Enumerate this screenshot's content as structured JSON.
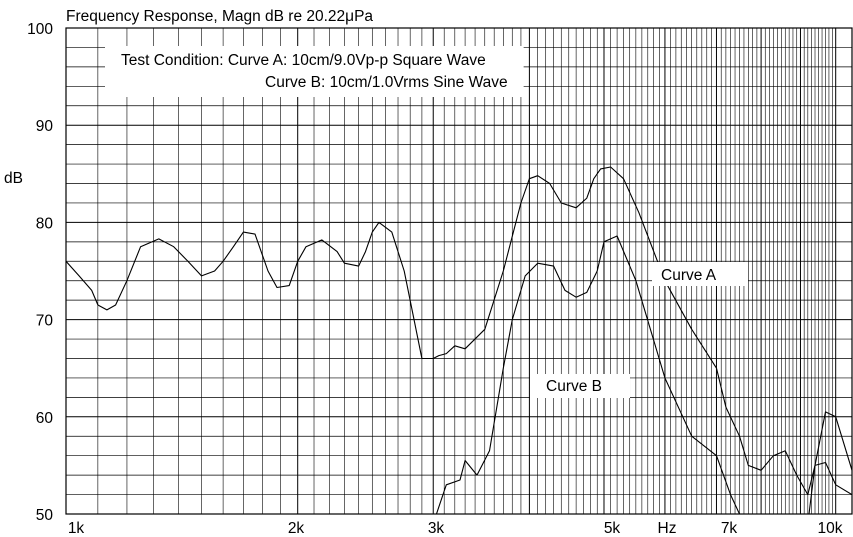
{
  "chart_data": {
    "type": "line",
    "title": "Frequency Response, Magn dB re 20.22μPa",
    "xlabel": "Hz",
    "ylabel": "dB",
    "x_scale": "log",
    "xlim": [
      1000,
      10500
    ],
    "ylim": [
      50,
      100
    ],
    "grid": true,
    "x_ticks": [
      {
        "value": 1000,
        "label": "1k"
      },
      {
        "value": 2000,
        "label": "2k"
      },
      {
        "value": 3000,
        "label": "3k"
      },
      {
        "value": 5000,
        "label": "5k"
      },
      {
        "value": 7000,
        "label": "7k"
      },
      {
        "value": 10000,
        "label": "10k"
      }
    ],
    "x_unit_label": "Hz",
    "y_ticks": [
      50,
      60,
      70,
      80,
      90,
      100
    ],
    "legend_box": {
      "line1": "Test Condition: Curve A: 10cm/9.0Vp-p Square Wave",
      "line2": "Curve B: 10cm/1.0Vrms Sine Wave"
    },
    "series": [
      {
        "name": "Curve A",
        "x": [
          1000,
          1040,
          1080,
          1100,
          1130,
          1160,
          1200,
          1250,
          1320,
          1380,
          1440,
          1500,
          1560,
          1600,
          1650,
          1700,
          1760,
          1830,
          1880,
          1950,
          2000,
          2050,
          2150,
          2250,
          2300,
          2400,
          2450,
          2500,
          2550,
          2650,
          2750,
          2900,
          3000,
          3050,
          3120,
          3200,
          3300,
          3500,
          3700,
          3900,
          4000,
          4100,
          4250,
          4400,
          4600,
          4750,
          4850,
          4950,
          5100,
          5300,
          5550,
          6000,
          6500,
          7000,
          7200,
          7500,
          7700,
          8000,
          8300,
          8600,
          8900,
          9200,
          9400,
          9700,
          10000,
          10500
        ],
        "values": [
          76,
          74.5,
          73,
          71.5,
          71,
          71.5,
          74,
          77.5,
          78.3,
          77.5,
          76,
          74.5,
          75,
          76,
          77.5,
          79,
          78.8,
          75,
          73.3,
          73.5,
          76,
          77.5,
          78.2,
          77,
          75.8,
          75.5,
          77,
          79,
          80,
          79,
          75,
          66,
          66,
          66.3,
          66.5,
          67.3,
          67,
          69,
          75,
          82,
          84.5,
          84.8,
          84,
          82,
          81.5,
          82.5,
          84.5,
          85.5,
          85.7,
          84.5,
          81,
          74,
          69,
          65,
          61,
          58,
          55,
          54.5,
          56,
          56.5,
          54,
          52,
          55,
          60.5,
          60,
          54.5
        ]
      },
      {
        "name": "Curve B",
        "x": [
          3000,
          3120,
          3250,
          3300,
          3420,
          3550,
          3700,
          3800,
          3950,
          4100,
          4300,
          4450,
          4600,
          4750,
          4900,
          5000,
          5200,
          5500,
          6000,
          6500,
          7000,
          7300,
          7500,
          8000,
          8600,
          9000,
          9200,
          9400,
          9700,
          10000,
          10500
        ],
        "values": [
          49,
          53,
          53.5,
          55.5,
          54,
          56.5,
          65,
          70,
          74.5,
          75.8,
          75.5,
          73,
          72.3,
          72.8,
          75,
          78,
          78.6,
          74,
          64,
          58,
          56,
          52,
          50,
          49,
          49,
          49,
          49,
          55,
          55.3,
          53,
          52
        ]
      }
    ],
    "annotations": [
      {
        "text": "Curve A",
        "target": "Curve A"
      },
      {
        "text": "Curve B",
        "target": "Curve B"
      }
    ]
  }
}
